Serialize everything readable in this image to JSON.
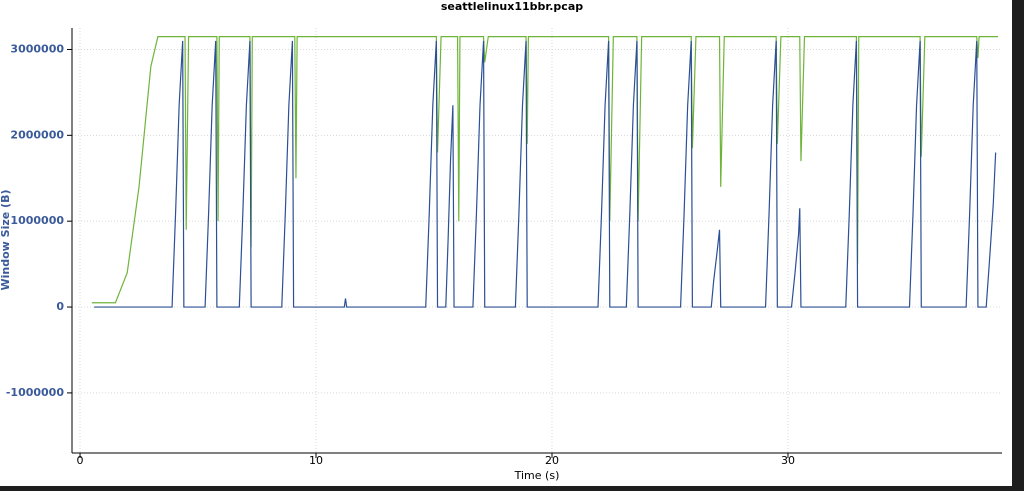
{
  "chart_data": {
    "type": "line",
    "title": "seattlelinux11bbr.pcap",
    "x_label": "Time (s)",
    "y_label": "Window Size (B)",
    "xlim": [
      -0.34,
      39.07
    ],
    "ylim": [
      -1700000,
      3250000
    ],
    "xticks": [
      0,
      10,
      20,
      30
    ],
    "yticks": [
      3000000,
      2000000,
      1000000,
      0,
      -1000000
    ],
    "grid": true,
    "series": [
      {
        "color": "#6fb43a",
        "x": [
          0.5,
          1.5,
          2.0,
          2.5,
          3.0,
          3.3,
          4.45,
          4.5,
          4.6,
          5.8,
          5.85,
          5.9,
          7.2,
          7.25,
          7.3,
          9.1,
          9.15,
          9.2,
          15.1,
          15.15,
          15.3,
          16.0,
          16.05,
          16.1,
          17.1,
          17.15,
          17.3,
          18.9,
          18.95,
          19.0,
          22.4,
          22.45,
          22.6,
          23.6,
          23.65,
          23.8,
          25.9,
          25.95,
          26.1,
          27.1,
          27.15,
          27.3,
          29.5,
          29.55,
          29.7,
          30.5,
          30.55,
          30.7,
          32.9,
          32.95,
          33.0,
          35.6,
          35.65,
          35.8,
          38.0,
          38.05,
          38.1,
          38.9
        ],
        "values": [
          50000,
          50000,
          400000,
          1400000,
          2800000,
          3150000,
          3150000,
          900000,
          3150000,
          3150000,
          1000000,
          3150000,
          3150000,
          700000,
          3150000,
          3150000,
          1500000,
          3150000,
          3150000,
          1800000,
          3150000,
          3150000,
          1000000,
          3150000,
          3150000,
          2850000,
          3150000,
          3150000,
          1900000,
          3150000,
          3150000,
          1000000,
          3150000,
          3150000,
          1000000,
          3150000,
          3150000,
          1850000,
          3150000,
          3150000,
          1400000,
          3150000,
          3150000,
          1900000,
          3150000,
          3150000,
          1700000,
          3150000,
          3150000,
          500000,
          3150000,
          3150000,
          1750000,
          3150000,
          3150000,
          2900000,
          3150000,
          3150000
        ]
      },
      {
        "color": "#2c4f96",
        "x": [
          0.6,
          3.9,
          4.05,
          4.2,
          4.35,
          4.4,
          5.3,
          5.45,
          5.6,
          5.75,
          5.8,
          6.75,
          6.9,
          7.05,
          7.2,
          7.25,
          8.55,
          8.7,
          8.85,
          9.0,
          9.05,
          11.2,
          11.25,
          11.3,
          14.65,
          14.8,
          14.95,
          15.1,
          15.15,
          15.5,
          15.6,
          15.7,
          15.8,
          15.85,
          16.65,
          16.8,
          16.95,
          17.1,
          17.15,
          18.45,
          18.6,
          18.75,
          18.9,
          18.95,
          21.95,
          22.1,
          22.25,
          22.4,
          22.45,
          23.15,
          23.3,
          23.45,
          23.6,
          23.65,
          25.45,
          25.6,
          25.75,
          25.9,
          25.95,
          26.75,
          26.85,
          27.0,
          27.1,
          27.15,
          29.05,
          29.2,
          29.35,
          29.5,
          29.55,
          30.15,
          30.3,
          30.45,
          30.5,
          30.55,
          32.45,
          32.6,
          32.75,
          32.9,
          32.95,
          35.15,
          35.3,
          35.45,
          35.6,
          35.65,
          37.55,
          37.7,
          37.85,
          38.0,
          38.05,
          38.4,
          38.55,
          38.7,
          38.8
        ],
        "values": [
          0,
          0,
          1100000,
          2350000,
          3100000,
          0,
          0,
          1100000,
          2350000,
          3100000,
          0,
          0,
          1100000,
          2350000,
          3100000,
          0,
          0,
          1100000,
          2350000,
          3100000,
          0,
          0,
          100000,
          0,
          0,
          1100000,
          2350000,
          3100000,
          0,
          0,
          800000,
          1700000,
          2350000,
          0,
          0,
          1100000,
          2350000,
          3100000,
          0,
          0,
          1100000,
          2350000,
          3100000,
          0,
          0,
          1100000,
          2350000,
          3100000,
          0,
          0,
          1100000,
          2350000,
          3100000,
          0,
          0,
          1100000,
          2350000,
          3100000,
          0,
          0,
          300000,
          650000,
          900000,
          0,
          0,
          1100000,
          2350000,
          3100000,
          0,
          0,
          400000,
          850000,
          1150000,
          0,
          0,
          1100000,
          2350000,
          3100000,
          0,
          0,
          1100000,
          2350000,
          3100000,
          0,
          0,
          1100000,
          2350000,
          3100000,
          0,
          0,
          580000,
          1200000,
          1800000
        ]
      }
    ]
  }
}
